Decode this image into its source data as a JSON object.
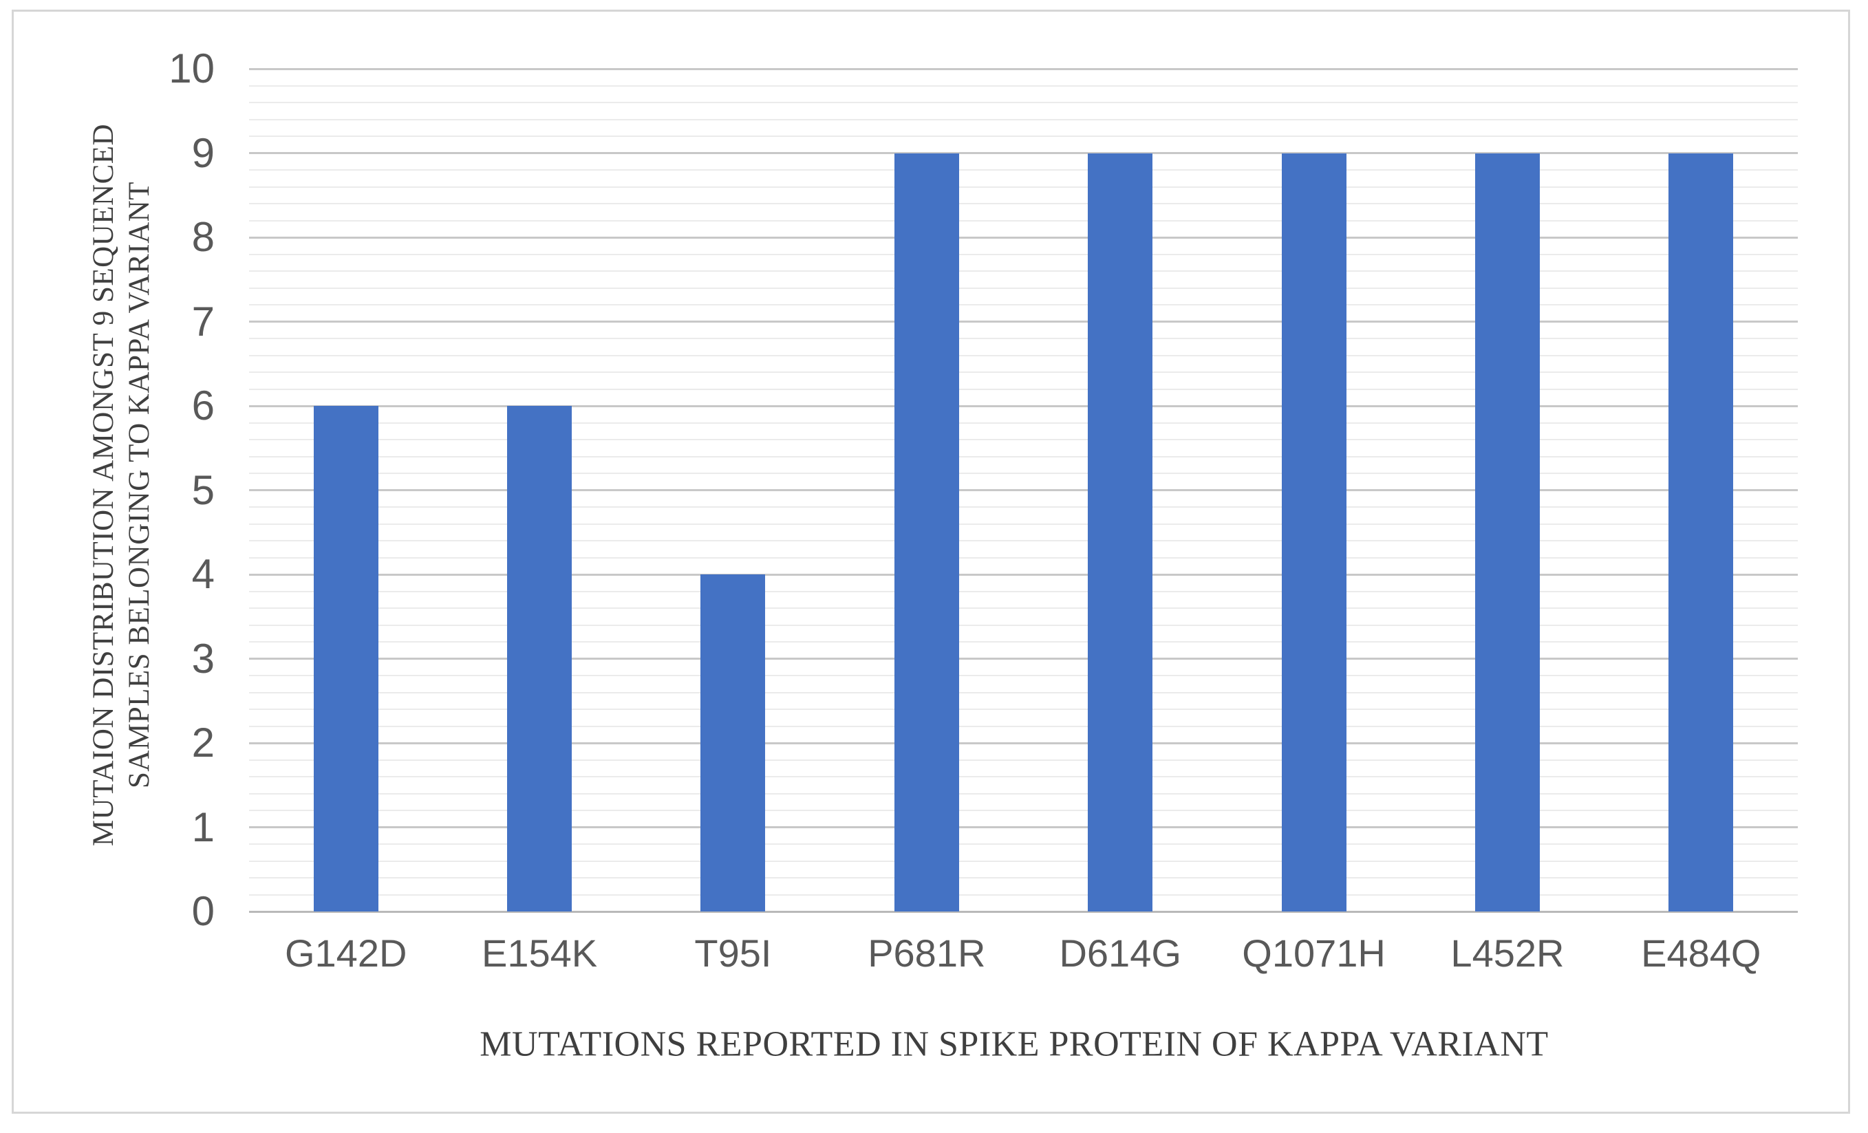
{
  "chart_data": {
    "type": "bar",
    "categories": [
      "G142D",
      "E154K",
      "T95I",
      "P681R",
      "D614G",
      "Q1071H",
      "L452R",
      "E484Q"
    ],
    "values": [
      6,
      6,
      4,
      9,
      9,
      9,
      9,
      9
    ],
    "title": "",
    "xlabel": "MUTATIONS REPORTED IN SPIKE PROTEIN OF KAPPA VARIANT",
    "ylabel_line1": "MUTAION DISTRIBUTION AMONGST 9 SEQUENCED",
    "ylabel_line2": "SAMPLES BELONGING TO KAPPA VARIANT",
    "ylabel": "MUTAION DISTRIBUTION AMONGST 9 SEQUENCED SAMPLES BELONGING TO KAPPA VARIANT",
    "ylim": [
      0,
      10
    ],
    "ytick_labels": [
      "0",
      "1",
      "2",
      "3",
      "4",
      "5",
      "6",
      "7",
      "8",
      "9",
      "10"
    ],
    "major_gridline_step": 1,
    "minor_gridline_step": 0.2,
    "grid_on": true,
    "legend": "none",
    "bar_color": "#4472C4",
    "major_gridline_color": "#C8C8C8",
    "minor_gridline_color": "#EBEBEB",
    "axis_line_color": "#B9B9B9",
    "tick_label_color": "#595959",
    "axis_title_color": "#3F3F3F",
    "frame_border_color": "#D6D6D6"
  }
}
